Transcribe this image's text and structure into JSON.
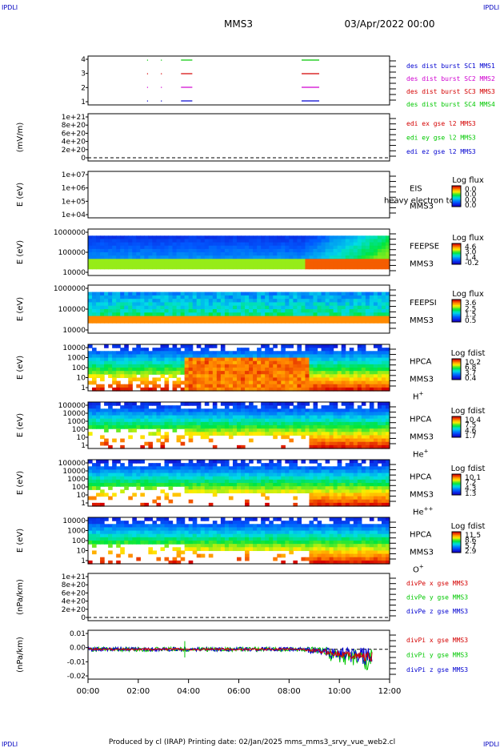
{
  "header": {
    "corner_tl": "IPDLI",
    "corner_tr": "IPDLI",
    "corner_bl": "IPDLI",
    "corner_br": "IPDLI",
    "mission": "MMS3",
    "date": "03/Apr/2022 00:00"
  },
  "footer": {
    "text": "Produced by cl (IRAP)   Printing date: 02/Jan/2025   mms_mms3_srvy_vue_web2.cl"
  },
  "colors": {
    "red": "#d40000",
    "green": "#00c800",
    "magenta": "#d000d0",
    "blue": "#0000d0"
  },
  "chart_data": [
    {
      "id": "burst",
      "type": "line",
      "ylabel": "",
      "y_ticks": [
        "4",
        "3",
        "2",
        "1"
      ],
      "legend": [
        {
          "label": "des dist burst SC1 MMS1",
          "color": "#0000d0"
        },
        {
          "label": "des dist burst SC2 MMS2",
          "color": "#d000d0"
        },
        {
          "label": "des dist burst SC3 MMS3",
          "color": "#d40000"
        },
        {
          "label": "des dist burst SC4 MMS4",
          "color": "#00c800"
        }
      ],
      "intervals_hours": [
        [
          3.7,
          4.15
        ],
        [
          8.5,
          9.2
        ]
      ],
      "levels": [
        4,
        3,
        2,
        1
      ]
    },
    {
      "id": "edi",
      "type": "line",
      "ylabel": "(mV/m)",
      "y_ticks": [
        "1e+21",
        "8e+20",
        "6e+20",
        "4e+20",
        "2e+20",
        "0"
      ],
      "legend": [
        {
          "label": "edi ex gse l2 MMS3",
          "color": "#d40000"
        },
        {
          "label": "edi ey gse l2 MMS3",
          "color": "#00c800"
        },
        {
          "label": "edi ez gse l2 MMS3",
          "color": "#0000d0"
        }
      ]
    },
    {
      "id": "eis",
      "type": "heatmap",
      "ylabel": "E (eV)",
      "y_ticks": [
        "1e+07",
        "1e+06",
        "1e+05",
        "1e+04"
      ],
      "label_lines": [
        "EIS",
        "MMS3"
      ],
      "overlay_text": "heavy electron to",
      "colorbar_title": "Log flux",
      "colorbar_ticks": [
        "0.0",
        "0.0",
        "0.0",
        "0.0"
      ]
    },
    {
      "id": "feepse",
      "type": "heatmap",
      "ylabel": "E (eV)",
      "y_ticks": [
        "1000000",
        "100000",
        "10000"
      ],
      "label_lines": [
        "FEEPSE",
        "MMS3"
      ],
      "colorbar_title": "Log flux",
      "colorbar_ticks": [
        "4.6",
        "3.0",
        "1.4",
        "-0.2"
      ]
    },
    {
      "id": "feepsi",
      "type": "heatmap",
      "ylabel": "E (eV)",
      "y_ticks": [
        "1000000",
        "100000",
        "10000"
      ],
      "label_lines": [
        "FEEPSI",
        "MMS3"
      ],
      "colorbar_title": "Log flux",
      "colorbar_ticks": [
        "3.6",
        "2.5",
        "1.5",
        "0.5"
      ]
    },
    {
      "id": "hpca_h",
      "type": "heatmap",
      "ylabel": "E (eV)",
      "y_ticks": [
        "10000",
        "1000",
        "100",
        "10",
        "1"
      ],
      "label_lines": [
        "HPCA",
        "MMS3"
      ],
      "species": "H",
      "species_sup": "+",
      "colorbar_title": "Log fdist",
      "colorbar_ticks": [
        "10.2",
        "6.8",
        "3.7",
        "0.4"
      ]
    },
    {
      "id": "hpca_he1",
      "type": "heatmap",
      "ylabel": "E (eV)",
      "y_ticks": [
        "100000",
        "10000",
        "1000",
        "100",
        "10",
        "1"
      ],
      "label_lines": [
        "HPCA",
        "MMS3"
      ],
      "species": "He",
      "species_sup": "+",
      "colorbar_title": "Log fdist",
      "colorbar_ticks": [
        "10.4",
        "7.5",
        "4.6",
        "1.7"
      ]
    },
    {
      "id": "hpca_he2",
      "type": "heatmap",
      "ylabel": "E (eV)",
      "y_ticks": [
        "100000",
        "10000",
        "1000",
        "100",
        "10",
        "1"
      ],
      "label_lines": [
        "HPCA",
        "MMS3"
      ],
      "species": "He",
      "species_sup": "++",
      "colorbar_title": "Log fdist",
      "colorbar_ticks": [
        "10.1",
        "7.2",
        "4.3",
        "1.3"
      ]
    },
    {
      "id": "hpca_o",
      "type": "heatmap",
      "ylabel": "E (eV)",
      "y_ticks": [
        "10000",
        "1000",
        "100",
        "10",
        "1"
      ],
      "label_lines": [
        "HPCA",
        "MMS3"
      ],
      "species": "O",
      "species_sup": "+",
      "colorbar_title": "Log fdist",
      "colorbar_ticks": [
        "11.5",
        "8.6",
        "5.7",
        "2.9"
      ]
    },
    {
      "id": "divpe",
      "type": "line",
      "ylabel": "(nPa/km)",
      "y_ticks": [
        "1e+21",
        "8e+20",
        "6e+20",
        "4e+20",
        "2e+20",
        "0"
      ],
      "legend": [
        {
          "label": "divPe x gse MMS3",
          "color": "#d40000"
        },
        {
          "label": "divPe y gse MMS3",
          "color": "#00c800"
        },
        {
          "label": "divPe z gse MMS3",
          "color": "#0000d0"
        }
      ]
    },
    {
      "id": "divpi",
      "type": "line",
      "ylabel": "(nPa/km)",
      "y_ticks": [
        "0.01",
        "0.00",
        "-0.01",
        "-0.02"
      ],
      "ylim": [
        -0.022,
        0.014
      ],
      "legend": [
        {
          "label": "divPi x gse MMS3",
          "color": "#d40000"
        },
        {
          "label": "divPi y gse MMS3",
          "color": "#00c800"
        },
        {
          "label": "divPi z gse MMS3",
          "color": "#0000d0"
        }
      ]
    }
  ],
  "x_axis": {
    "ticks": [
      "00:00",
      "02:00",
      "04:00",
      "06:00",
      "08:00",
      "10:00",
      "12:00"
    ],
    "range_hours": [
      0,
      12
    ]
  }
}
